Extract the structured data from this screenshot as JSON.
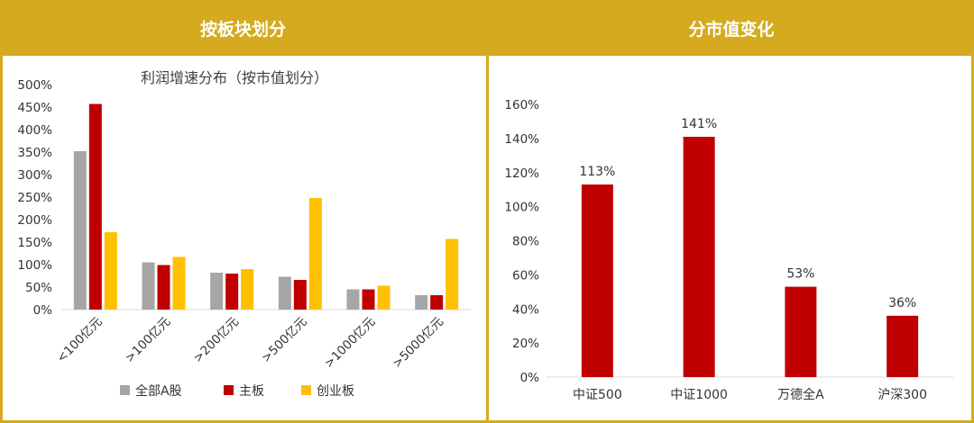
{
  "colors": {
    "frame": "#d5aa1f",
    "grey": "#a6a6a6",
    "red": "#c00000",
    "yellow": "#ffc000"
  },
  "left_panel": {
    "header": "按板块划分"
  },
  "right_panel": {
    "header": "分市值变化"
  },
  "chart_data": [
    {
      "type": "bar",
      "title": "利润增速分布（按市值划分）",
      "categories": [
        "<100亿元",
        ">100亿元",
        ">200亿元",
        ">500亿元",
        ">1000亿元",
        ">5000亿元"
      ],
      "series": [
        {
          "name": "全部A股",
          "color": "#a6a6a6",
          "values": [
            352,
            105,
            82,
            73,
            45,
            32
          ]
        },
        {
          "name": "主板",
          "color": "#c00000",
          "values": [
            457,
            99,
            80,
            66,
            45,
            32
          ]
        },
        {
          "name": "创业板",
          "color": "#ffc000",
          "values": [
            172,
            117,
            90,
            248,
            53,
            157
          ]
        }
      ],
      "ylim": [
        0,
        500
      ],
      "yticks": [
        "0%",
        "50%",
        "100%",
        "150%",
        "200%",
        "250%",
        "300%",
        "350%",
        "400%",
        "450%",
        "500%"
      ],
      "grid": false,
      "legend": "bottom"
    },
    {
      "type": "bar",
      "categories": [
        "中证500",
        "中证1000",
        "万德全A",
        "沪深300"
      ],
      "values": [
        113,
        141,
        53,
        36
      ],
      "data_labels": [
        "113%",
        "141%",
        "53%",
        "36%"
      ],
      "color": "#c00000",
      "ylim": [
        0,
        160
      ],
      "yticks": [
        "0%",
        "20%",
        "40%",
        "60%",
        "80%",
        "100%",
        "120%",
        "140%",
        "160%"
      ],
      "grid": false
    }
  ]
}
